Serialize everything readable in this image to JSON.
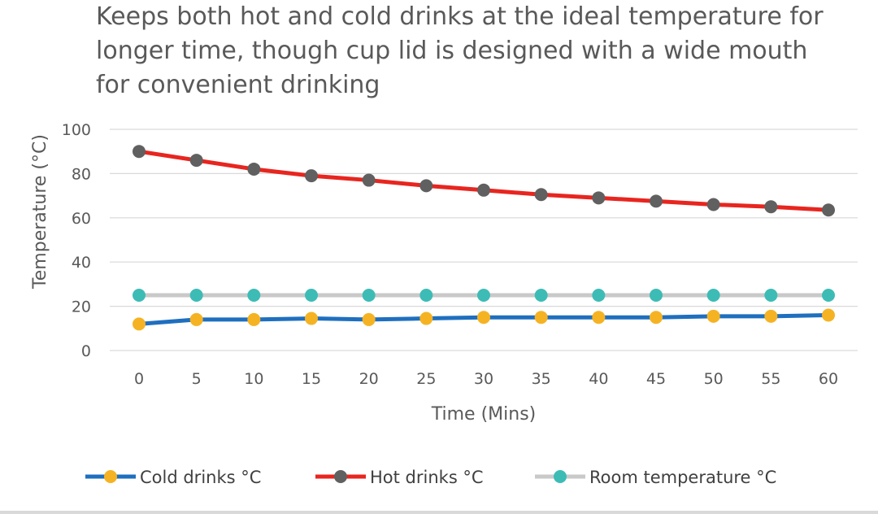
{
  "chart_data": {
    "type": "line",
    "title": "Keeps both hot and cold drinks at the ideal temperature for longer time, though cup lid is designed with a wide mouth for convenient drinking",
    "xlabel": "Time (Mins)",
    "ylabel": "Temperature (°C)",
    "x": [
      0,
      5,
      10,
      15,
      20,
      25,
      30,
      35,
      40,
      45,
      50,
      55,
      60
    ],
    "x_tick_labels": [
      "0",
      "5",
      "10",
      "15",
      "20",
      "25",
      "30",
      "35",
      "40",
      "45",
      "50",
      "55",
      "60"
    ],
    "ylim": [
      0,
      100
    ],
    "y_ticks": [
      0,
      20,
      40,
      60,
      80,
      100
    ],
    "y_tick_labels": [
      "0",
      "20",
      "40",
      "60",
      "80",
      "100"
    ],
    "grid": true,
    "legend_position": "bottom",
    "series": [
      {
        "name": "Cold drinks °C",
        "values": [
          12,
          14,
          14,
          14.5,
          14,
          14.5,
          15,
          15,
          15,
          15,
          15.5,
          15.5,
          16
        ],
        "line_color": "#1f6fbf",
        "marker_color": "#f5b323"
      },
      {
        "name": "Hot drinks °C",
        "values": [
          90,
          86,
          82,
          79,
          77,
          74.5,
          72.5,
          70.5,
          69,
          67.5,
          66,
          65,
          63.5
        ],
        "line_color": "#e8251f",
        "marker_color": "#606060"
      },
      {
        "name": "Room temperature °C",
        "values": [
          25,
          25,
          25,
          25,
          25,
          25,
          25,
          25,
          25,
          25,
          25,
          25,
          25
        ],
        "line_color": "#c9c9c9",
        "marker_color": "#3dbcb6"
      }
    ]
  }
}
